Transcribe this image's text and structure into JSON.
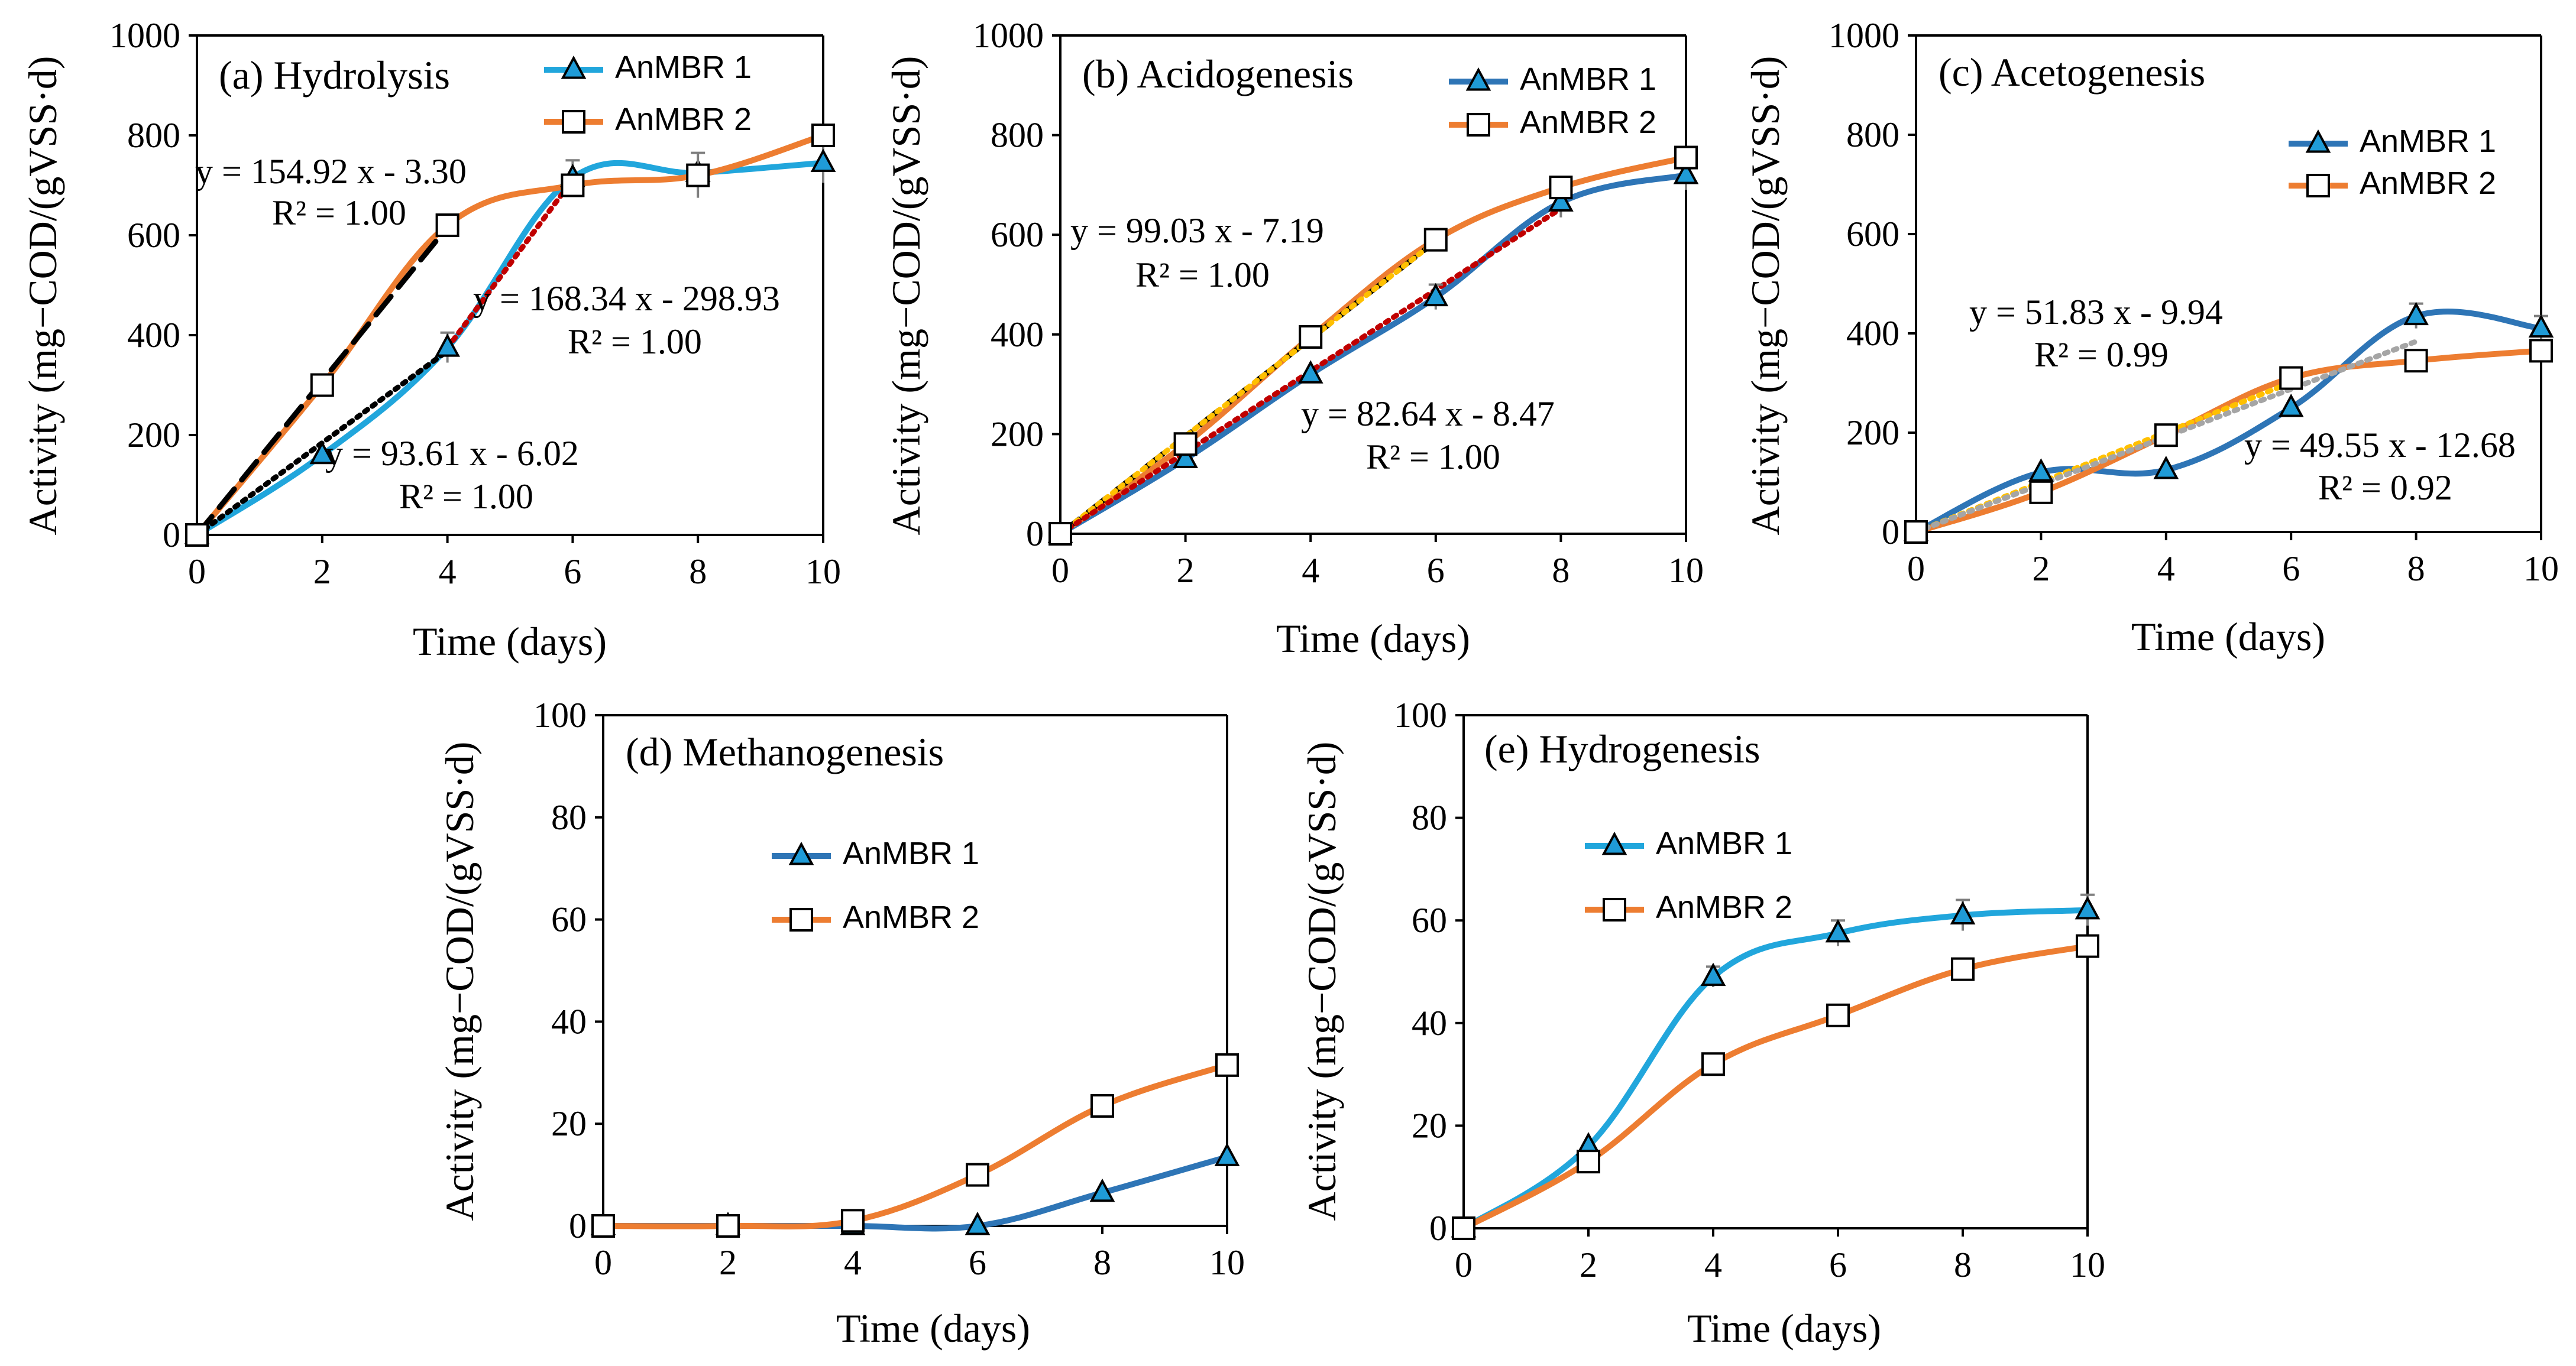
{
  "colors": {
    "anmbr1": "#2E75B6",
    "anmbr1_light": "#21A6DC",
    "anmbr2": "#ED7D31",
    "marker_fill_1": "#1F9BD7",
    "marker_fill_2": "#FFFFFF",
    "axis": "#000000",
    "err": "#7F7F7F"
  },
  "chart_data": [
    {
      "id": "a",
      "type": "line",
      "title": "(a) Hydrolysis",
      "xlabel": "Time (days)",
      "ylabel": "Activity (mg−COD/(gVSS·d)",
      "xlim": [
        0,
        10
      ],
      "ylim": [
        0,
        1000
      ],
      "xticks": [
        "0",
        "2",
        "4",
        "6",
        "8",
        "10"
      ],
      "yticks": [
        "0",
        "200",
        "400",
        "600",
        "800",
        "1000"
      ],
      "legend_position": "top-right",
      "series": [
        {
          "name": "AnMBR 1",
          "marker": "triangle",
          "color_key": "anmbr1_light",
          "x": [
            0,
            2,
            4,
            6,
            8,
            10
          ],
          "y": [
            0,
            160,
            375,
            715,
            725,
            745
          ],
          "err": [
            0,
            0,
            30,
            35,
            0,
            40
          ]
        },
        {
          "name": "AnMBR 2",
          "marker": "square",
          "color_key": "anmbr2",
          "x": [
            0,
            2,
            4,
            6,
            8,
            10
          ],
          "y": [
            0,
            300,
            620,
            700,
            720,
            800
          ],
          "err": [
            0,
            0,
            0,
            0,
            45,
            0
          ]
        }
      ],
      "trendlines": [
        {
          "style": "dashed",
          "color": "#000000",
          "x": [
            0,
            4
          ],
          "slope": 154.92,
          "intercept": -3.3
        },
        {
          "style": "dotted",
          "color": "#000000",
          "x": [
            0,
            4
          ],
          "slope": 93.61,
          "intercept": -6.02
        },
        {
          "style": "dotted",
          "color": "#C00000",
          "x": [
            4,
            6
          ],
          "slope": 168.34,
          "intercept": -298.93
        }
      ],
      "annotations": [
        {
          "eq": "y = 154.92 x - 3.30",
          "r2": "R² = 1.00"
        },
        {
          "eq": "y = 168.34 x - 298.93",
          "r2": "R² = 1.00"
        },
        {
          "eq": "y = 93.61 x - 6.02",
          "r2": "R² = 1.00"
        }
      ]
    },
    {
      "id": "b",
      "type": "line",
      "title": "(b) Acidogenesis",
      "xlabel": "Time (days)",
      "ylabel": "Activity (mg−COD/(gVSS·d)",
      "xlim": [
        0,
        10
      ],
      "ylim": [
        0,
        1000
      ],
      "xticks": [
        "0",
        "2",
        "4",
        "6",
        "8",
        "10"
      ],
      "yticks": [
        "0",
        "200",
        "400",
        "600",
        "800",
        "1000"
      ],
      "legend_position": "top-right",
      "series": [
        {
          "name": "AnMBR 1",
          "marker": "triangle",
          "color_key": "anmbr1",
          "x": [
            0,
            2,
            4,
            6,
            8,
            10
          ],
          "y": [
            0,
            150,
            320,
            475,
            665,
            720
          ],
          "err": [
            0,
            0,
            0,
            25,
            30,
            30
          ]
        },
        {
          "name": "AnMBR 2",
          "marker": "square",
          "color_key": "anmbr2",
          "x": [
            0,
            2,
            4,
            6,
            8,
            10
          ],
          "y": [
            0,
            180,
            395,
            590,
            695,
            755
          ],
          "err": [
            0,
            0,
            0,
            0,
            0,
            0
          ]
        }
      ],
      "trendlines": [
        {
          "style": "dashed",
          "color": "#000000",
          "x": [
            0,
            6
          ],
          "slope": 99.03,
          "intercept": -7.19
        },
        {
          "style": "dotted",
          "color": "#FFC000",
          "x": [
            0,
            6
          ],
          "slope": 99.03,
          "intercept": -7.19
        },
        {
          "style": "dotted",
          "color": "#C00000",
          "x": [
            0,
            8
          ],
          "slope": 82.64,
          "intercept": -8.47
        }
      ],
      "annotations": [
        {
          "eq": "y = 99.03 x - 7.19",
          "r2": "R² = 1.00"
        },
        {
          "eq": "y = 82.64 x - 8.47",
          "r2": "R² = 1.00"
        }
      ]
    },
    {
      "id": "c",
      "type": "line",
      "title": "(c) Acetogenesis",
      "xlabel": "Time (days)",
      "ylabel": "Activity (mg−COD/(gVSS·d)",
      "xlim": [
        0,
        10
      ],
      "ylim": [
        0,
        1000
      ],
      "xticks": [
        "0",
        "2",
        "4",
        "6",
        "8",
        "10"
      ],
      "yticks": [
        "0",
        "200",
        "400",
        "600",
        "800",
        "1000"
      ],
      "legend_position": "top-right",
      "series": [
        {
          "name": "AnMBR 1",
          "marker": "triangle",
          "color_key": "anmbr1",
          "x": [
            0,
            2,
            4,
            6,
            8,
            10
          ],
          "y": [
            0,
            120,
            125,
            250,
            435,
            410
          ],
          "err": [
            0,
            0,
            0,
            0,
            25,
            25
          ]
        },
        {
          "name": "AnMBR 2",
          "marker": "square",
          "color_key": "anmbr2",
          "x": [
            0,
            2,
            4,
            6,
            8,
            10
          ],
          "y": [
            0,
            80,
            195,
            310,
            345,
            365
          ],
          "err": [
            0,
            0,
            0,
            0,
            0,
            0
          ]
        }
      ],
      "trendlines": [
        {
          "style": "dotted",
          "color": "#FFC000",
          "x": [
            0,
            6
          ],
          "slope": 51.83,
          "intercept": -9.94
        },
        {
          "style": "dotted",
          "color": "#A5A5A5",
          "x": [
            0,
            8
          ],
          "slope": 49.55,
          "intercept": -12.68
        }
      ],
      "annotations": [
        {
          "eq": "y = 51.83 x - 9.94",
          "r2": "R² = 0.99"
        },
        {
          "eq": "y = 49.55 x - 12.68",
          "r2": "R² = 0.92"
        }
      ]
    },
    {
      "id": "d",
      "type": "line",
      "title": "(d) Methanogenesis",
      "xlabel": "Time (days)",
      "ylabel": "Activity (mg−COD/(gVSS·d)",
      "xlim": [
        0,
        10
      ],
      "ylim": [
        0,
        100
      ],
      "xticks": [
        "0",
        "2",
        "4",
        "6",
        "8",
        "10"
      ],
      "yticks": [
        "0",
        "20",
        "40",
        "60",
        "80",
        "100"
      ],
      "legend_position": "center-right",
      "series": [
        {
          "name": "AnMBR 1",
          "marker": "triangle",
          "color_key": "anmbr1",
          "x": [
            0,
            2,
            4,
            6,
            8,
            10
          ],
          "y": [
            0,
            0,
            0,
            0,
            6.5,
            13.5
          ],
          "err": [
            0,
            0,
            0,
            0,
            0,
            0
          ]
        },
        {
          "name": "AnMBR 2",
          "marker": "square",
          "color_key": "anmbr2",
          "x": [
            0,
            2,
            4,
            6,
            8,
            10
          ],
          "y": [
            0,
            0,
            1,
            10,
            23.5,
            31.5
          ],
          "err": [
            0,
            0,
            0,
            0,
            0,
            0
          ]
        }
      ],
      "trendlines": [],
      "annotations": []
    },
    {
      "id": "e",
      "type": "line",
      "title": "(e) Hydrogenesis",
      "xlabel": "Time (days)",
      "ylabel": "Activity (mg−COD/(gVSS·d)",
      "xlim": [
        0,
        10
      ],
      "ylim": [
        0,
        100
      ],
      "xticks": [
        "0",
        "2",
        "4",
        "6",
        "8",
        "10"
      ],
      "yticks": [
        "0",
        "20",
        "40",
        "60",
        "80",
        "100"
      ],
      "legend_position": "top-left",
      "series": [
        {
          "name": "AnMBR 1",
          "marker": "triangle",
          "color_key": "anmbr1_light",
          "x": [
            0,
            2,
            4,
            6,
            8,
            10
          ],
          "y": [
            0,
            16,
            49,
            57.5,
            61,
            62
          ],
          "err": [
            0,
            0,
            2,
            2.5,
            3,
            3
          ]
        },
        {
          "name": "AnMBR 2",
          "marker": "square",
          "color_key": "anmbr2",
          "x": [
            0,
            2,
            4,
            6,
            8,
            10
          ],
          "y": [
            0,
            13,
            32,
            41.5,
            50.5,
            55
          ],
          "err": [
            0,
            0,
            0,
            0,
            0,
            0
          ]
        }
      ],
      "trendlines": [],
      "annotations": []
    }
  ]
}
